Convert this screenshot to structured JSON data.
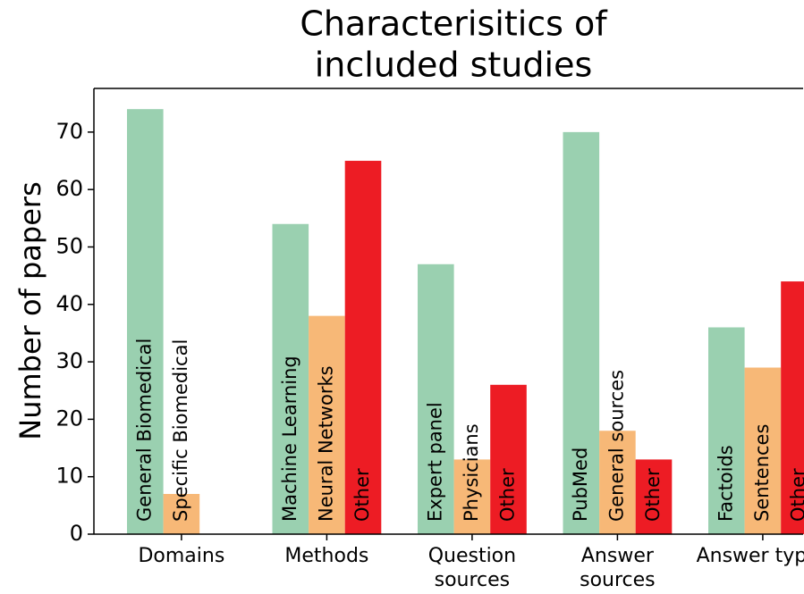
{
  "chart_data": {
    "type": "grouped-bar",
    "title": [
      "Characterisitics of",
      "included studies"
    ],
    "y_label": "Number of papers",
    "ylim": [
      0,
      77.6
    ],
    "yticks": [
      0,
      10,
      20,
      30,
      40,
      50,
      60,
      70
    ],
    "groups": [
      {
        "name": [
          "Domains"
        ],
        "bars": [
          {
            "label": "General Biomedical",
            "value": 74,
            "color": "#9ad0b0",
            "label_color": "#000000"
          },
          {
            "label": "Specific Biomedical",
            "value": 7,
            "color": "#f7b877",
            "label_color": "#000000"
          }
        ]
      },
      {
        "name": [
          "Methods"
        ],
        "bars": [
          {
            "label": "Machine Learning",
            "value": 54,
            "color": "#9ad0b0",
            "label_color": "#000000"
          },
          {
            "label": "Neural Networks",
            "value": 38,
            "color": "#f7b877",
            "label_color": "#000000"
          },
          {
            "label": "Other",
            "value": 65,
            "color": "#ed1c24",
            "label_color": "#ffffff"
          }
        ]
      },
      {
        "name": [
          "Question",
          "sources"
        ],
        "bars": [
          {
            "label": "Expert panel",
            "value": 47,
            "color": "#9ad0b0",
            "label_color": "#000000"
          },
          {
            "label": "Physicians",
            "value": 13,
            "color": "#f7b877",
            "label_color": "#000000"
          },
          {
            "label": "Other",
            "value": 26,
            "color": "#ed1c24",
            "label_color": "#ffffff"
          }
        ]
      },
      {
        "name": [
          "Answer",
          "sources"
        ],
        "bars": [
          {
            "label": "PubMed",
            "value": 70,
            "color": "#9ad0b0",
            "label_color": "#000000"
          },
          {
            "label": "General sources",
            "value": 18,
            "color": "#f7b877",
            "label_color": "#000000"
          },
          {
            "label": "Other",
            "value": 13,
            "color": "#ed1c24",
            "label_color": "#ffffff"
          }
        ]
      },
      {
        "name": [
          "Answer types"
        ],
        "bars": [
          {
            "label": "Factoids",
            "value": 36,
            "color": "#9ad0b0",
            "label_color": "#000000"
          },
          {
            "label": "Sentences",
            "value": 29,
            "color": "#f7b877",
            "label_color": "#000000"
          },
          {
            "label": "Other",
            "value": 44,
            "color": "#ed1c24",
            "label_color": "#ffffff"
          }
        ]
      }
    ]
  }
}
